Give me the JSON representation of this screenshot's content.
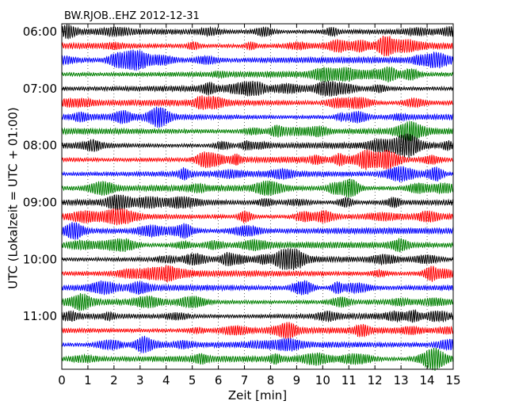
{
  "chart_data": {
    "type": "line",
    "title": "BW.RJOB..EHZ 2012-12-31",
    "xlabel": "Zeit  [min]",
    "ylabel": "UTC (Lokalzeit = UTC + 01:00)",
    "xlim": [
      0,
      15
    ],
    "x_ticks": [
      "0",
      "1",
      "2",
      "3",
      "4",
      "5",
      "6",
      "7",
      "8",
      "9",
      "10",
      "11",
      "12",
      "13",
      "14",
      "15"
    ],
    "y_ticks": [
      "06:00",
      "07:00",
      "08:00",
      "09:00",
      "10:00",
      "11:00"
    ],
    "traces_per_hour": 4,
    "trace_count": 24,
    "trace_colors": [
      "#000000",
      "#ff0000",
      "#0000ff",
      "#008000"
    ],
    "grid": "vertical dotted at each minute"
  }
}
